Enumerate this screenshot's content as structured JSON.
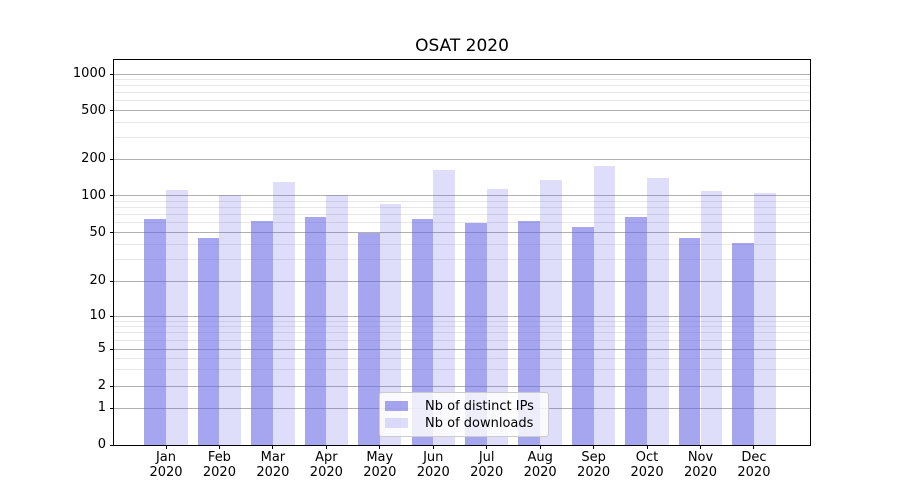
{
  "chart_data": {
    "type": "bar",
    "title": "OSAT 2020",
    "categories": [
      "Jan 2020",
      "Feb 2020",
      "Mar 2020",
      "Apr 2020",
      "May 2020",
      "Jun 2020",
      "Jul 2020",
      "Aug 2020",
      "Sep 2020",
      "Oct 2020",
      "Nov 2020",
      "Dec 2020"
    ],
    "series": [
      {
        "name": "Nb of distinct IPs",
        "values": [
          65,
          45,
          62,
          67,
          50,
          65,
          60,
          62,
          55,
          67,
          45,
          41
        ],
        "color": "rgba(100,100,230,0.58)"
      },
      {
        "name": "Nb of downloads",
        "values": [
          111,
          101,
          130,
          102,
          85,
          163,
          113,
          134,
          175,
          140,
          110,
          105
        ],
        "color": "rgba(100,100,230,0.21)"
      }
    ],
    "xlabel": "",
    "ylabel": "",
    "yscale": "symlog",
    "yticks": [
      0,
      1,
      2,
      5,
      10,
      20,
      50,
      100,
      200,
      500,
      1000
    ],
    "ylim": [
      0,
      1300
    ],
    "grid": true,
    "legend_position": "lower center"
  }
}
